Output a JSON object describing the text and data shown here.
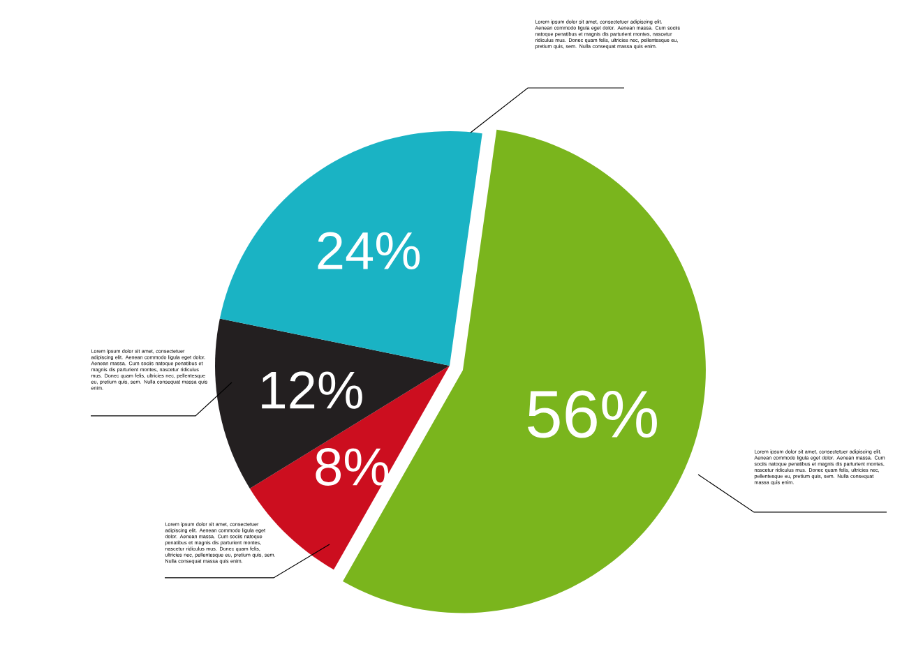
{
  "chart_data": {
    "type": "pie",
    "categories": [
      null,
      null,
      null,
      null
    ],
    "values": [
      56,
      8,
      12,
      24
    ],
    "colors": [
      "#7ab51d",
      "#cc0e1f",
      "#231f20",
      "#1ab3c4"
    ],
    "value_labels": [
      "56%",
      "8%",
      "12%",
      "24%"
    ],
    "annotations": [
      "Lorem ipsum dolor sit amet, consectetuer adipiscing elit. Aenean commodo ligula eget dolor. Aenean massa. Cum sociis natoque penatibus et magnis dis parturient montes, nascetur ridiculus mus. Donec quam felis, ultricies nec, pellentesque eu, pretium quis, sem. Nulla consequat massa quis enim.",
      "Lorem ipsum dolor sit amet, consectetuer adipiscing elit. Aenean commodo ligula eget dolor. Aenean massa. Cum sociis natoque penatibus et magnis dis parturient montes, nascetur ridiculus mus. Donec quam felis, ultricies nec, pellentesque eu, pretium quis, sem. Nulla consequat massa quis enim.",
      "Lorem ipsum dolor sit amet, consectetuer adipiscing elit. Aenean commodo ligula eget dolor. Aenean massa. Cum sociis natoque penatibus et magnis dis parturient montes, nascetur ridiculus mus. Donec quam felis, ultricies nec, pellentesque eu, pretium quis, sem. Nulla consequat massa quis enim.",
      "Lorem ipsum dolor sit amet, consectetuer adipiscing elit. Aenean commodo ligula eget dolor. Aenean massa. Cum sociis natoque penatibus et magnis dis parturient montes, nascetur ridiculus mus. Donec quam felis, ultricies nec, pellentesque eu, pretium quis, sem. Nulla consequat massa quis enim."
    ]
  }
}
